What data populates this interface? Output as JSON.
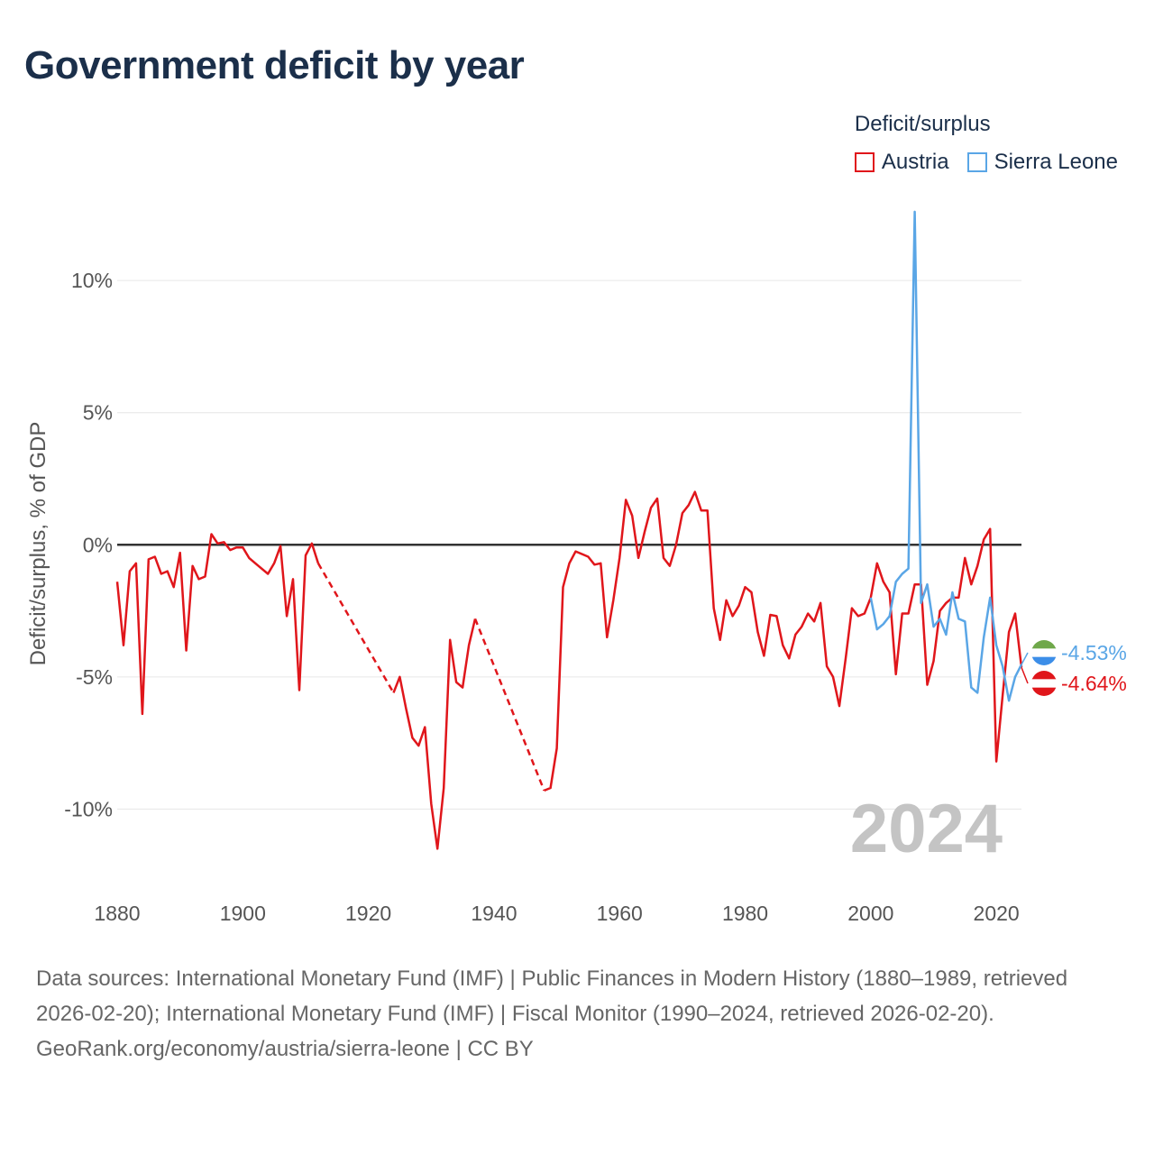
{
  "chart_data": {
    "type": "line",
    "title": "Government deficit by year",
    "legend_title": "Deficit/surplus",
    "ylabel": "Deficit/surplus, % of GDP",
    "xlabel": "",
    "xlim": [
      1880,
      2024
    ],
    "ylim": [
      -13.5,
      12.7
    ],
    "x_ticks": [
      {
        "value": 1880,
        "label": "1880"
      },
      {
        "value": 1900,
        "label": "1900"
      },
      {
        "value": 1920,
        "label": "1920"
      },
      {
        "value": 1940,
        "label": "1940"
      },
      {
        "value": 1960,
        "label": "1960"
      },
      {
        "value": 1980,
        "label": "1980"
      },
      {
        "value": 2000,
        "label": "2000"
      },
      {
        "value": 2020,
        "label": "2020"
      }
    ],
    "y_ticks": [
      {
        "value": 10,
        "label": "10%"
      },
      {
        "value": 5,
        "label": "5%"
      },
      {
        "value": 0,
        "label": "0%"
      },
      {
        "value": -5,
        "label": "-5%"
      },
      {
        "value": -10,
        "label": "-10%"
      }
    ],
    "year_watermark": "2024",
    "series": [
      {
        "name": "Austria",
        "color": "#e0161b",
        "end_label": "-4.64%",
        "flag": "austria-flag",
        "segments": [
          [
            [
              1880,
              -1.4
            ],
            [
              1881,
              -3.8
            ],
            [
              1882,
              -1.0
            ],
            [
              1883,
              -0.7
            ],
            [
              1884,
              -6.4
            ],
            [
              1885,
              -0.55
            ],
            [
              1886,
              -0.45
            ],
            [
              1887,
              -1.1
            ],
            [
              1888,
              -1.0
            ],
            [
              1889,
              -1.6
            ],
            [
              1890,
              -0.3
            ],
            [
              1891,
              -4.0
            ],
            [
              1892,
              -0.8
            ],
            [
              1893,
              -1.3
            ],
            [
              1894,
              -1.2
            ],
            [
              1895,
              0.4
            ],
            [
              1896,
              0.05
            ],
            [
              1897,
              0.1
            ],
            [
              1898,
              -0.2
            ],
            [
              1899,
              -0.1
            ],
            [
              1900,
              -0.1
            ],
            [
              1901,
              -0.5
            ],
            [
              1902,
              -0.7
            ],
            [
              1903,
              -0.9
            ],
            [
              1904,
              -1.1
            ],
            [
              1905,
              -0.7
            ],
            [
              1906,
              -0.05
            ],
            [
              1907,
              -2.7
            ],
            [
              1908,
              -1.3
            ],
            [
              1909,
              -5.5
            ],
            [
              1910,
              -0.4
            ],
            [
              1911,
              0.05
            ],
            [
              1912,
              -0.7
            ]
          ],
          [
            [
              1924,
              -5.6
            ],
            [
              1925,
              -5.0
            ],
            [
              1926,
              -6.2
            ],
            [
              1927,
              -7.3
            ],
            [
              1928,
              -7.6
            ],
            [
              1929,
              -6.9
            ],
            [
              1930,
              -9.8
            ],
            [
              1931,
              -11.5
            ],
            [
              1932,
              -9.2
            ],
            [
              1933,
              -3.6
            ],
            [
              1934,
              -5.2
            ],
            [
              1935,
              -5.4
            ],
            [
              1936,
              -3.8
            ],
            [
              1937,
              -2.8
            ]
          ],
          [
            [
              1948,
              -9.3
            ],
            [
              1949,
              -9.2
            ],
            [
              1950,
              -7.7
            ],
            [
              1951,
              -1.6
            ],
            [
              1952,
              -0.7
            ],
            [
              1953,
              -0.25
            ],
            [
              1954,
              -0.35
            ],
            [
              1955,
              -0.45
            ],
            [
              1956,
              -0.75
            ],
            [
              1957,
              -0.7
            ],
            [
              1958,
              -3.5
            ],
            [
              1959,
              -2.1
            ],
            [
              1960,
              -0.5
            ],
            [
              1961,
              1.7
            ],
            [
              1962,
              1.1
            ],
            [
              1963,
              -0.5
            ],
            [
              1964,
              0.5
            ],
            [
              1965,
              1.4
            ],
            [
              1966,
              1.75
            ],
            [
              1967,
              -0.5
            ],
            [
              1968,
              -0.8
            ],
            [
              1969,
              0.0
            ],
            [
              1970,
              1.2
            ],
            [
              1971,
              1.5
            ],
            [
              1972,
              2.0
            ],
            [
              1973,
              1.3
            ],
            [
              1974,
              1.3
            ],
            [
              1975,
              -2.4
            ],
            [
              1976,
              -3.6
            ],
            [
              1977,
              -2.1
            ],
            [
              1978,
              -2.7
            ],
            [
              1979,
              -2.3
            ],
            [
              1980,
              -1.6
            ],
            [
              1981,
              -1.8
            ],
            [
              1982,
              -3.3
            ],
            [
              1983,
              -4.2
            ],
            [
              1984,
              -2.65
            ],
            [
              1985,
              -2.7
            ],
            [
              1986,
              -3.8
            ],
            [
              1987,
              -4.3
            ],
            [
              1988,
              -3.4
            ],
            [
              1989,
              -3.1
            ],
            [
              1990,
              -2.6
            ],
            [
              1991,
              -2.9
            ],
            [
              1992,
              -2.2
            ],
            [
              1993,
              -4.6
            ],
            [
              1994,
              -5.0
            ],
            [
              1995,
              -6.1
            ],
            [
              1996,
              -4.3
            ],
            [
              1997,
              -2.4
            ],
            [
              1998,
              -2.7
            ],
            [
              1999,
              -2.6
            ],
            [
              2000,
              -2.0
            ],
            [
              2001,
              -0.7
            ],
            [
              2002,
              -1.4
            ],
            [
              2003,
              -1.8
            ],
            [
              2004,
              -4.9
            ],
            [
              2005,
              -2.6
            ],
            [
              2006,
              -2.6
            ],
            [
              2007,
              -1.5
            ],
            [
              2008,
              -1.5
            ],
            [
              2009,
              -5.3
            ],
            [
              2010,
              -4.4
            ],
            [
              2011,
              -2.5
            ],
            [
              2012,
              -2.2
            ],
            [
              2013,
              -2.0
            ],
            [
              2014,
              -2.0
            ],
            [
              2015,
              -0.5
            ],
            [
              2016,
              -1.5
            ],
            [
              2017,
              -0.8
            ],
            [
              2018,
              0.2
            ],
            [
              2019,
              0.6
            ],
            [
              2020,
              -8.2
            ],
            [
              2021,
              -5.7
            ],
            [
              2022,
              -3.3
            ],
            [
              2023,
              -2.6
            ],
            [
              2024,
              -4.64
            ]
          ]
        ],
        "gaps": [
          [
            [
              1912,
              -0.7
            ],
            [
              1924,
              -5.6
            ]
          ],
          [
            [
              1937,
              -2.8
            ],
            [
              1948,
              -9.3
            ]
          ]
        ]
      },
      {
        "name": "Sierra Leone",
        "color": "#5aa6e6",
        "end_label": "-4.53%",
        "flag": "sierra-leone-flag",
        "segments": [
          [
            [
              2000,
              -2.0
            ],
            [
              2001,
              -3.2
            ],
            [
              2002,
              -3.0
            ],
            [
              2003,
              -2.7
            ],
            [
              2004,
              -1.4
            ],
            [
              2005,
              -1.1
            ],
            [
              2006,
              -0.9
            ],
            [
              2007,
              12.6
            ],
            [
              2008,
              -2.2
            ],
            [
              2009,
              -1.5
            ],
            [
              2010,
              -3.1
            ],
            [
              2011,
              -2.8
            ],
            [
              2012,
              -3.4
            ],
            [
              2013,
              -1.8
            ],
            [
              2014,
              -2.8
            ],
            [
              2015,
              -2.9
            ],
            [
              2016,
              -5.4
            ],
            [
              2017,
              -5.6
            ],
            [
              2018,
              -3.5
            ],
            [
              2019,
              -2.0
            ],
            [
              2020,
              -3.8
            ],
            [
              2021,
              -4.6
            ],
            [
              2022,
              -5.9
            ],
            [
              2023,
              -5.0
            ],
            [
              2024,
              -4.53
            ]
          ]
        ],
        "gaps": []
      }
    ]
  },
  "footer": {
    "sources": "Data sources: International Monetary Fund (IMF) | Public Finances in Modern History (1880–1989, retrieved 2026-02-20); International Monetary Fund (IMF) | Fiscal Monitor (1990–2024, retrieved 2026-02-20).",
    "attribution": "GeoRank.org/economy/austria/sierra-leone | CC BY"
  }
}
